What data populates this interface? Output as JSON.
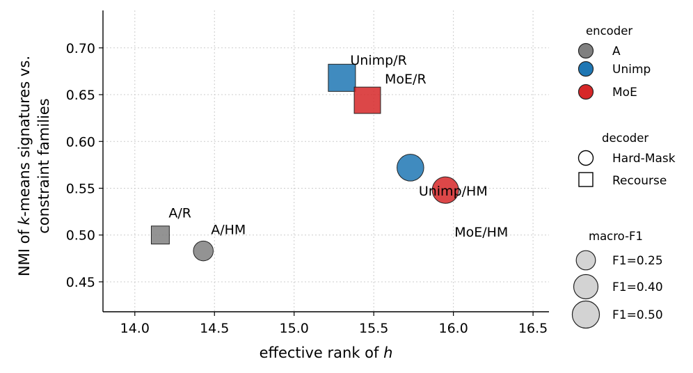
{
  "chart_data": {
    "type": "scatter",
    "title": "",
    "xlabel": "effective rank of ",
    "xlabel_italic": "h",
    "ylabel_line1_pre": "NMI of ",
    "ylabel_line1_italic": "k",
    "ylabel_line1_post": "-means signatures vs.",
    "ylabel_line2": "constraint families",
    "xlim": [
      13.8,
      16.6
    ],
    "ylim": [
      0.418,
      0.74
    ],
    "x_ticks": [
      14.0,
      14.5,
      15.0,
      15.5,
      16.0,
      16.5
    ],
    "x_tick_labels": [
      "14.0",
      "14.5",
      "15.0",
      "15.5",
      "16.0",
      "16.5"
    ],
    "y_ticks": [
      0.45,
      0.5,
      0.55,
      0.6,
      0.65,
      0.7
    ],
    "y_tick_labels": [
      "0.45",
      "0.50",
      "0.55",
      "0.60",
      "0.65",
      "0.70"
    ],
    "grid": true,
    "colors": {
      "A": "#808080",
      "Unimp": "#1f77b4",
      "MoE": "#d62728"
    },
    "points": [
      {
        "label": "A/R",
        "encoder": "A",
        "decoder": "Recourse",
        "x": 14.16,
        "y": 0.5,
        "f1": 0.22
      },
      {
        "label": "A/HM",
        "encoder": "A",
        "decoder": "Hard-Mask",
        "x": 14.43,
        "y": 0.483,
        "f1": 0.23
      },
      {
        "label": "Unimp/R",
        "encoder": "Unimp",
        "decoder": "Recourse",
        "x": 15.3,
        "y": 0.668,
        "f1": 0.5
      },
      {
        "label": "MoE/R",
        "encoder": "MoE",
        "decoder": "Recourse",
        "x": 15.46,
        "y": 0.644,
        "f1": 0.47
      },
      {
        "label": "Unimp/HM",
        "encoder": "Unimp",
        "decoder": "Hard-Mask",
        "x": 15.73,
        "y": 0.572,
        "f1": 0.42
      },
      {
        "label": "MoE/HM",
        "encoder": "MoE",
        "decoder": "Hard-Mask",
        "x": 15.95,
        "y": 0.548,
        "f1": 0.41
      }
    ],
    "legend": {
      "placement": "right, outside",
      "encoder": {
        "title": "encoder",
        "items": [
          "A",
          "Unimp",
          "MoE"
        ]
      },
      "decoder": {
        "title": "decoder",
        "items": [
          "Hard-Mask",
          "Recourse"
        ]
      },
      "size": {
        "title": "macro-F1",
        "items": [
          {
            "label": "F1=0.25",
            "f1": 0.25
          },
          {
            "label": "F1=0.40",
            "f1": 0.4
          },
          {
            "label": "F1=0.50",
            "f1": 0.5
          }
        ]
      }
    }
  }
}
